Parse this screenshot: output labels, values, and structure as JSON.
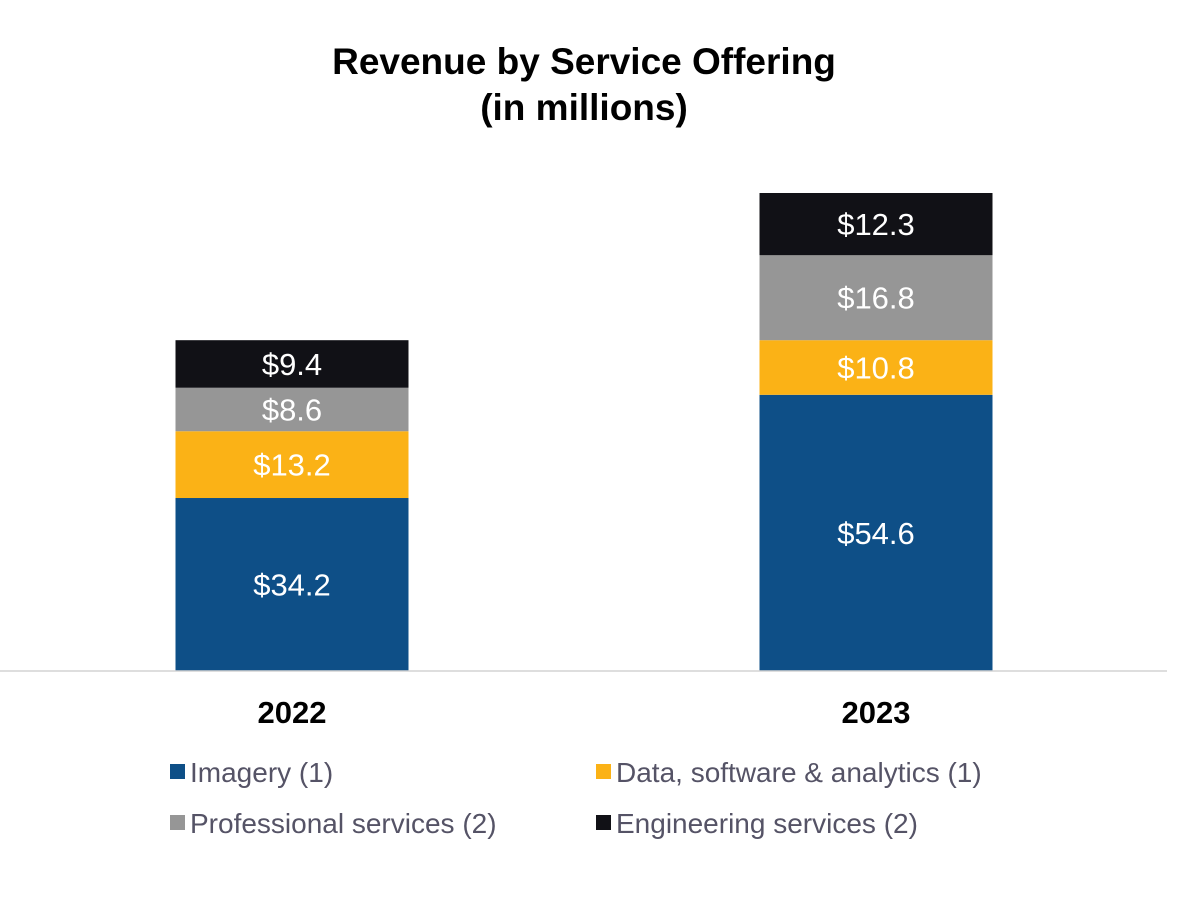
{
  "chart_data": {
    "type": "bar",
    "stacked": true,
    "title": "Revenue by Service Offering",
    "subtitle": "(in millions)",
    "categories": [
      "2022",
      "2023"
    ],
    "series": [
      {
        "name": "Imagery (1)",
        "color": "#0E4F87",
        "values": [
          34.2,
          54.6
        ],
        "labels": [
          "$34.2",
          "$54.6"
        ]
      },
      {
        "name": "Data, software & analytics (1)",
        "color": "#FBB216",
        "values": [
          13.2,
          10.8
        ],
        "labels": [
          "$13.2",
          "$10.8"
        ]
      },
      {
        "name": "Professional services (2)",
        "color": "#969696",
        "values": [
          8.6,
          16.8
        ],
        "labels": [
          "$8.6",
          "$16.8"
        ]
      },
      {
        "name": "Engineering services (2)",
        "color": "#111116",
        "values": [
          9.4,
          12.3
        ],
        "labels": [
          "$9.4",
          "$12.3"
        ]
      }
    ],
    "xlabel": "",
    "ylabel": "",
    "ylim": [
      0,
      94.5
    ],
    "grid": false,
    "legend_position": "bottom"
  }
}
